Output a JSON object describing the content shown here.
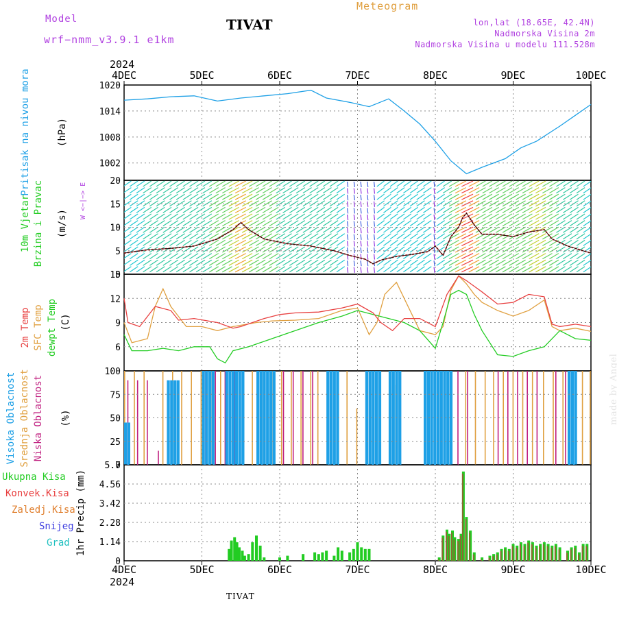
{
  "header": {
    "model_label": "Model",
    "model_name": "wrf−nmm_v3.9.1  e1km",
    "title": "TIVAT",
    "meteogram_label": "Meteogram",
    "coords": "lon,lat (18.65E, 42.4N)",
    "altitude": "Nadmorska Visina 2m",
    "model_altitude": "Nadmorska Visina u modelu 111.528m",
    "footer": "TIVAT",
    "credit": "made by Angel"
  },
  "colors": {
    "pressure": "#1ea0e6",
    "temp2m": "#e84040",
    "sfc": "#e0a040",
    "dewpt": "#22cc22",
    "cloud_high": "#1ea0e6",
    "cloud_mid": "#e0a040",
    "cloud_low": "#c02080",
    "precip_total": "#22cc22",
    "precip_conv": "#e84040",
    "precip_strat": "#e08030",
    "snow": "#4040e0",
    "hail": "#20c0c0",
    "wind_label": "#22cc22",
    "wind_dir_label": "#b040e0",
    "model_text": "#b040e0",
    "meteo_text": "#e0a040",
    "ylabel_dark": "#000000"
  },
  "chart_data": [
    {
      "type": "line",
      "panel": "pressure",
      "title": "",
      "xlabel": "",
      "ylabel": "Pritisak na nivou mora",
      "unit": "(hPa)",
      "x_ticks": [
        "4DEC",
        "5DEC",
        "6DEC",
        "7DEC",
        "8DEC",
        "9DEC",
        "10DEC"
      ],
      "year_label": "2024",
      "ylim": [
        998,
        1020
      ],
      "y_ticks": [
        "1020",
        "1014",
        "1008",
        "1002"
      ],
      "series": [
        {
          "name": "Pritisak na nivou mora",
          "x_days": [
            0,
            0.3,
            0.6,
            0.9,
            1.2,
            1.5,
            1.8,
            2.1,
            2.4,
            2.6,
            2.9,
            3.15,
            3.4,
            3.6,
            3.8,
            4.0,
            4.2,
            4.4,
            4.6,
            4.9,
            5.1,
            5.3,
            5.6,
            5.8,
            6.0
          ],
          "values": [
            1016.5,
            1016.8,
            1017.3,
            1017.5,
            1016.3,
            1017.0,
            1017.5,
            1018.0,
            1018.8,
            1017.0,
            1016.0,
            1015.0,
            1016.8,
            1014.0,
            1011.0,
            1007.0,
            1002.5,
            999.5,
            1001.0,
            1003.0,
            1005.5,
            1007.0,
            1010.5,
            1013.0,
            1015.5
          ]
        }
      ]
    },
    {
      "type": "line",
      "panel": "wind",
      "ylabel": "10m Vjetar Brzina i Pravac",
      "unit": "(m/s)",
      "direction_legend": "W <−|−> E",
      "ylim": [
        0,
        20
      ],
      "y_ticks": [
        "20",
        "15",
        "10",
        "5",
        "0"
      ],
      "series": [
        {
          "name": "Brzina",
          "x_days": [
            0,
            0.3,
            0.6,
            0.9,
            1.2,
            1.4,
            1.5,
            1.6,
            1.8,
            2.1,
            2.4,
            2.7,
            2.9,
            3.1,
            3.2,
            3.3,
            3.5,
            3.7,
            3.9,
            4.0,
            4.1,
            4.2,
            4.3,
            4.35,
            4.4,
            4.5,
            4.6,
            4.8,
            5.0,
            5.2,
            5.4,
            5.5,
            5.7,
            5.9,
            6.0
          ],
          "values": [
            4.5,
            5.2,
            5.5,
            6.0,
            7.5,
            9.5,
            11.0,
            9.5,
            7.5,
            6.5,
            6.0,
            5.0,
            4.0,
            3.2,
            2.2,
            3.0,
            3.8,
            4.2,
            4.8,
            6.0,
            4.0,
            8.0,
            10.0,
            12.0,
            13.0,
            10.5,
            8.5,
            8.5,
            8.0,
            9.0,
            9.5,
            7.5,
            6.0,
            5.0,
            4.5
          ]
        }
      ]
    },
    {
      "type": "line",
      "panel": "temperature",
      "ylabels": [
        "2m Temp",
        "SFC Temp",
        "dewpt Temp"
      ],
      "unit": "(C)",
      "ylim": [
        3,
        15
      ],
      "y_ticks": [
        "15",
        "12",
        "9",
        "6"
      ],
      "series": [
        {
          "name": "2m Temp",
          "x_days": [
            0,
            0.05,
            0.2,
            0.4,
            0.6,
            0.7,
            0.9,
            1.2,
            1.4,
            1.5,
            1.8,
            2.0,
            2.2,
            2.5,
            2.8,
            3.0,
            3.2,
            3.3,
            3.45,
            3.6,
            3.8,
            4.0,
            4.15,
            4.3,
            4.4,
            4.5,
            4.6,
            4.8,
            5.0,
            5.2,
            5.4,
            5.5,
            5.6,
            5.8,
            6.0
          ],
          "values": [
            12.0,
            9.0,
            8.5,
            11.0,
            10.5,
            9.3,
            9.5,
            9.0,
            8.3,
            8.5,
            9.5,
            10.0,
            10.2,
            10.3,
            10.8,
            11.3,
            10.2,
            9.0,
            8.0,
            9.5,
            9.5,
            8.5,
            12.5,
            14.8,
            14.2,
            13.5,
            12.8,
            11.3,
            11.5,
            12.5,
            12.2,
            8.8,
            8.5,
            8.8,
            8.5
          ]
        },
        {
          "name": "SFC Temp",
          "x_days": [
            0,
            0.1,
            0.3,
            0.4,
            0.5,
            0.6,
            0.8,
            1.0,
            1.2,
            1.4,
            1.7,
            1.9,
            2.2,
            2.5,
            2.8,
            3.0,
            3.15,
            3.25,
            3.35,
            3.5,
            3.6,
            3.8,
            4.0,
            4.1,
            4.2,
            4.3,
            4.4,
            4.5,
            4.6,
            4.8,
            5.0,
            5.2,
            5.4,
            5.5,
            5.6,
            5.8,
            6.0
          ],
          "values": [
            9.0,
            6.5,
            7.0,
            11.0,
            13.2,
            11.0,
            8.5,
            8.5,
            8.0,
            8.5,
            9.0,
            9.2,
            9.3,
            9.5,
            10.5,
            10.8,
            7.5,
            9.0,
            12.5,
            14.0,
            12.0,
            8.0,
            7.5,
            8.5,
            13.0,
            14.8,
            13.8,
            12.5,
            11.5,
            10.5,
            9.8,
            10.5,
            11.8,
            8.5,
            8.0,
            8.3,
            7.9
          ]
        },
        {
          "name": "dewpt Temp",
          "x_days": [
            0,
            0.1,
            0.3,
            0.5,
            0.7,
            0.9,
            1.1,
            1.2,
            1.3,
            1.4,
            1.6,
            1.9,
            2.2,
            2.5,
            2.8,
            3.0,
            3.2,
            3.4,
            3.6,
            3.8,
            4.0,
            4.1,
            4.2,
            4.3,
            4.4,
            4.5,
            4.6,
            4.8,
            5.0,
            5.2,
            5.4,
            5.6,
            5.8,
            6.0
          ],
          "values": [
            7.5,
            5.5,
            5.5,
            5.8,
            5.5,
            6.0,
            6.0,
            4.5,
            4.0,
            5.5,
            6.0,
            7.0,
            8.0,
            9.0,
            9.8,
            10.5,
            10.0,
            9.5,
            9.0,
            8.0,
            5.8,
            9.0,
            12.5,
            13.0,
            12.5,
            10.0,
            8.0,
            5.0,
            4.8,
            5.5,
            6.0,
            8.0,
            7.0,
            6.8
          ]
        }
      ]
    },
    {
      "type": "bar",
      "panel": "clouds",
      "ylabels": [
        "Visoka Oblacnost",
        "Srednja Oblacnost",
        "Niska Oblacnost"
      ],
      "unit": "(%)",
      "ylim": [
        0,
        100
      ],
      "y_ticks": [
        "100",
        "75",
        "50",
        "25",
        "0"
      ],
      "series": [
        {
          "name": "Visoka Oblacnost",
          "segments": [
            [
              0.0,
              0.05,
              45
            ],
            [
              0.55,
              0.7,
              90
            ],
            [
              1.0,
              1.15,
              100
            ],
            [
              1.3,
              1.55,
              100
            ],
            [
              1.7,
              1.95,
              100
            ],
            [
              2.6,
              2.75,
              100
            ],
            [
              3.1,
              3.3,
              100
            ],
            [
              3.4,
              3.55,
              100
            ],
            [
              3.85,
              4.2,
              100
            ],
            [
              5.7,
              5.8,
              100
            ]
          ]
        },
        {
          "name": "Srednja Oblacnost",
          "segments": [
            [
              0.0,
              0.25,
              100
            ],
            [
              0.45,
              0.65,
              100
            ],
            [
              0.65,
              1.6,
              100
            ],
            [
              1.6,
              2.4,
              100
            ],
            [
              2.4,
              2.9,
              100
            ],
            [
              2.9,
              3.1,
              60
            ],
            [
              3.4,
              3.5,
              85
            ],
            [
              4.3,
              4.7,
              100
            ],
            [
              4.7,
              5.3,
              100
            ],
            [
              5.3,
              5.9,
              100
            ],
            [
              5.9,
              6.0,
              100
            ]
          ]
        },
        {
          "name": "Niska Oblacnost",
          "segments": [
            [
              0.0,
              0.3,
              90
            ],
            [
              0.35,
              0.45,
              15
            ],
            [
              1.0,
              1.5,
              100
            ],
            [
              2.0,
              2.5,
              100
            ],
            [
              3.2,
              3.3,
              25
            ],
            [
              4.2,
              4.5,
              100
            ],
            [
              4.8,
              5.4,
              100
            ],
            [
              5.5,
              5.9,
              100
            ]
          ]
        }
      ]
    },
    {
      "type": "bar",
      "panel": "precip",
      "ylabels": [
        "Ukupna Kisa",
        "Konvek.Kisa",
        "Zaledj.Kisa",
        "Snijeg",
        "Grad"
      ],
      "unit": "1hr Precip (mm)",
      "ylim": [
        0,
        5.7
      ],
      "y_ticks": [
        "5.7",
        "4.56",
        "3.42",
        "2.28",
        "1.14",
        "0"
      ],
      "series": [
        {
          "name": "Ukupna Kisa",
          "x_days": [
            1.35,
            1.38,
            1.42,
            1.45,
            1.48,
            1.52,
            1.55,
            1.6,
            1.65,
            1.7,
            1.75,
            1.8,
            2.0,
            2.1,
            2.3,
            2.45,
            2.5,
            2.55,
            2.6,
            2.7,
            2.75,
            2.8,
            2.9,
            2.95,
            3.0,
            3.05,
            3.1,
            3.15,
            4.05,
            4.1,
            4.15,
            4.18,
            4.22,
            4.25,
            4.3,
            4.33,
            4.36,
            4.4,
            4.45,
            4.5,
            4.6,
            4.7,
            4.75,
            4.8,
            4.85,
            4.9,
            4.95,
            5.0,
            5.05,
            5.1,
            5.15,
            5.2,
            5.25,
            5.3,
            5.35,
            5.4,
            5.45,
            5.5,
            5.55,
            5.6,
            5.7,
            5.75,
            5.8,
            5.85,
            5.9,
            5.95
          ],
          "values": [
            0.7,
            1.2,
            1.4,
            1.1,
            0.8,
            0.6,
            0.3,
            0.4,
            1.1,
            1.5,
            0.9,
            0.2,
            0.2,
            0.3,
            0.4,
            0.5,
            0.4,
            0.5,
            0.6,
            0.3,
            0.8,
            0.6,
            0.5,
            0.7,
            1.1,
            0.8,
            0.7,
            0.7,
            0.2,
            1.5,
            1.85,
            1.6,
            1.8,
            1.4,
            1.3,
            1.6,
            5.3,
            2.6,
            1.8,
            0.5,
            0.2,
            0.3,
            0.4,
            0.5,
            0.7,
            0.8,
            0.7,
            1.0,
            0.9,
            1.1,
            1.0,
            1.2,
            1.1,
            0.9,
            1.0,
            1.1,
            1.0,
            0.9,
            1.0,
            0.8,
            0.6,
            0.8,
            0.9,
            0.5,
            1.0,
            1.0
          ]
        }
      ]
    }
  ]
}
